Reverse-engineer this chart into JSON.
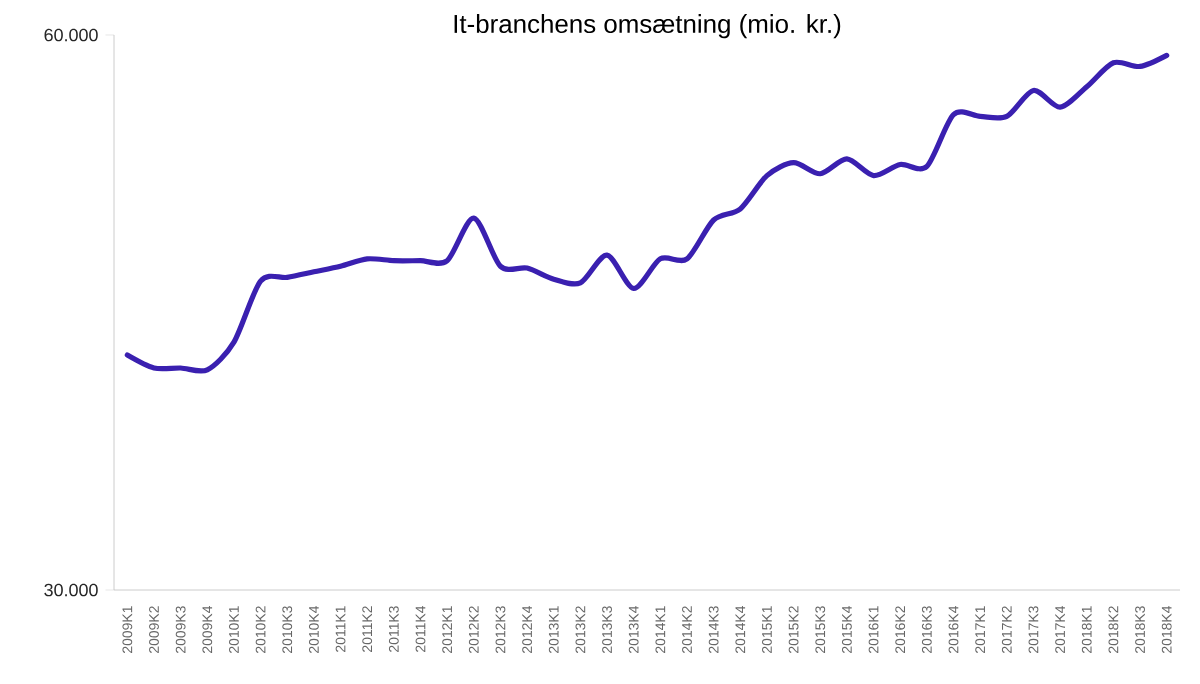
{
  "chart_data": {
    "type": "line",
    "title": "It-branchens omsætning (mio. kr.)",
    "categories": [
      "2009K1",
      "2009K2",
      "2009K3",
      "2009K4",
      "2010K1",
      "2010K2",
      "2010K3",
      "2010K4",
      "2011K1",
      "2011K2",
      "2011K3",
      "2011K4",
      "2012K1",
      "2012K2",
      "2012K3",
      "2012K4",
      "2013K1",
      "2013K2",
      "2013K3",
      "2013K4",
      "2014K1",
      "2014K2",
      "2014K3",
      "2014K4",
      "2015K1",
      "2015K2",
      "2015K3",
      "2015K4",
      "2016K1",
      "2016K2",
      "2016K3",
      "2016K4",
      "2017K1",
      "2017K2",
      "2017K3",
      "2017K4",
      "2018K1",
      "2018K2",
      "2018K3",
      "2018K4"
    ],
    "series": [
      {
        "color": "#3a20b0",
        "values": [
          42700,
          42000,
          42000,
          41900,
          43400,
          46700,
          46900,
          47200,
          47500,
          47900,
          47800,
          47800,
          47800,
          50100,
          47500,
          47400,
          46800,
          46600,
          48100,
          46300,
          47900,
          47900,
          50000,
          50600,
          52400,
          53100,
          52500,
          53300,
          52400,
          53000,
          52900,
          55700,
          55600,
          55600,
          57000,
          56100,
          57200,
          58500,
          58300,
          58900
        ]
      }
    ],
    "ylim": [
      30000,
      60000
    ],
    "yticks": [
      {
        "value": 30000,
        "label": "30.000"
      },
      {
        "value": 60000,
        "label": "60.000"
      }
    ],
    "marker": "none",
    "line_style": "solid"
  }
}
